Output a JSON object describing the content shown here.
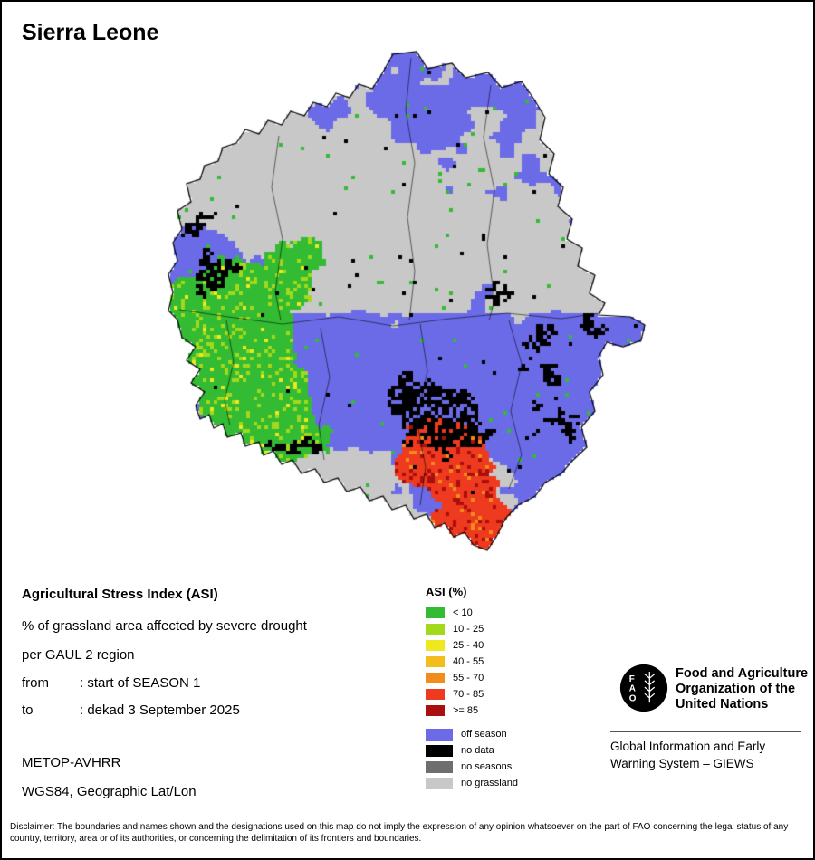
{
  "title": "Sierra Leone",
  "info": {
    "heading": "Agricultural Stress Index (ASI)",
    "line1": "% of grassland area affected by severe drought",
    "line2": "per GAUL 2 region",
    "from_label": "from",
    "from_value": ": start of SEASON 1",
    "to_label": "to",
    "to_value": ": dekad 3 September 2025",
    "sensor": "METOP-AVHRR",
    "projection": "WGS84, Geographic Lat/Lon"
  },
  "legend": {
    "title": "ASI (%)",
    "asi_classes": [
      {
        "label": "< 10",
        "color": "#33bb33"
      },
      {
        "label": "10 - 25",
        "color": "#a3d91c"
      },
      {
        "label": "25 - 40",
        "color": "#efe81f"
      },
      {
        "label": "40 - 55",
        "color": "#f2bd1d"
      },
      {
        "label": "55 - 70",
        "color": "#f28c1a"
      },
      {
        "label": "70 - 85",
        "color": "#ee3a1e"
      },
      {
        "label": ">= 85",
        "color": "#aa0f0f"
      }
    ],
    "status_classes": [
      {
        "label": "off season",
        "color": "#6b6be8"
      },
      {
        "label": "no data",
        "color": "#000000"
      },
      {
        "label": "no seasons",
        "color": "#6e6e6e"
      },
      {
        "label": "no grassland",
        "color": "#c8c8c8"
      }
    ]
  },
  "fao": {
    "logo_letters": [
      "F",
      "A",
      "O"
    ],
    "org_lines": [
      "Food and Agriculture",
      "Organization of the",
      "United Nations"
    ],
    "giews_lines": [
      "Global Information and Early",
      "Warning System – GIEWS"
    ]
  },
  "disclaimer": "Disclaimer: The boundaries and names shown and the designations used on this map do not imply the expression of any opinion whatsoever on the part of FAO concerning the legal status of any country, territory, area or of its authorities, or concerning the delimitation of its frontiers and boundaries."
}
